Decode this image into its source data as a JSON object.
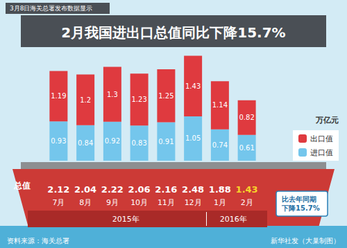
{
  "chart_data": {
    "type": "bar",
    "subtitle": "3月8日海关总署发布数据显示",
    "title": "2月我国进出口总值同比下降15.7%",
    "categories": [
      "7月",
      "8月",
      "9月",
      "10月",
      "11月",
      "12月",
      "1月",
      "2月"
    ],
    "series": [
      {
        "name": "进口值",
        "color": "#74c6ec",
        "values": [
          0.93,
          0.84,
          0.92,
          0.83,
          0.91,
          1.05,
          0.74,
          0.61
        ]
      },
      {
        "name": "出口值",
        "color": "#df3a3f",
        "values": [
          1.19,
          1.2,
          1.3,
          1.23,
          1.25,
          1.43,
          1.14,
          0.82
        ]
      }
    ],
    "stacked": true,
    "data_labels": true,
    "ylim": [
      0,
      2.8
    ],
    "tick_labels": "x",
    "grid": false,
    "legend": "right",
    "unit": "万亿元",
    "totals": {
      "label": "总值",
      "values": [
        2.12,
        2.04,
        2.22,
        2.06,
        2.16,
        2.48,
        1.88,
        1.43
      ]
    },
    "x_groups": [
      {
        "label": "2015年",
        "from": "7月",
        "to": "12月"
      },
      {
        "label": "2016年",
        "from": "1月",
        "to": "2月"
      }
    ],
    "annotation": "比去年同期下降15.7%",
    "source": "资料来源：海关总署",
    "credit": "新华社发（大巢制图）"
  }
}
